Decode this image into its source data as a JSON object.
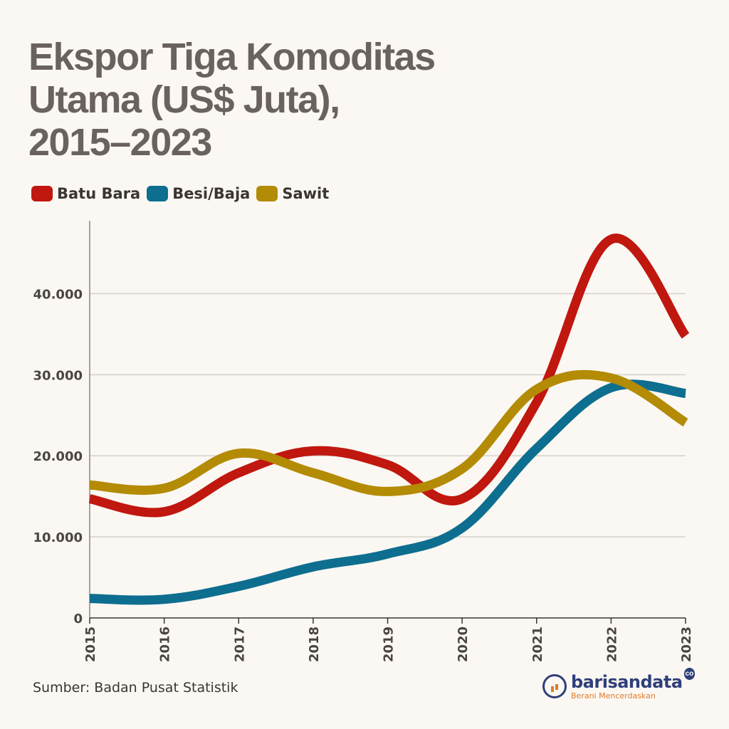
{
  "chart_data": {
    "type": "line",
    "title_lines": [
      "Ekspor Tiga Komoditas",
      "Utama (US$ Juta),",
      "2015–2023"
    ],
    "categories": [
      "2015",
      "2016",
      "2017",
      "2018",
      "2019",
      "2020",
      "2021",
      "2022",
      "2023"
    ],
    "y_ticks": [
      0,
      10000,
      20000,
      30000,
      40000
    ],
    "y_tick_labels": [
      "0",
      "10.000",
      "20.000",
      "30.000",
      "40.000"
    ],
    "ylim": [
      0,
      49000
    ],
    "grid": "horizontal",
    "legend_position": "top-left",
    "series": [
      {
        "name": "Batu Bara",
        "color": "#c0170f",
        "values": [
          14700,
          13100,
          17900,
          20600,
          18900,
          14700,
          26600,
          46700,
          34800
        ]
      },
      {
        "name": "Besi/Baja",
        "color": "#0e6e8f",
        "values": [
          2400,
          2300,
          3900,
          6300,
          7900,
          11100,
          20900,
          28400,
          27700
        ]
      },
      {
        "name": "Sawit",
        "color": "#b38b05",
        "values": [
          16400,
          16000,
          20300,
          17900,
          15600,
          18400,
          28200,
          29600,
          24100
        ]
      }
    ],
    "source": "Sumber: Badan Pusat Statistik"
  },
  "logo": {
    "name": "barisandata",
    "suffix": "co",
    "tagline": "Berani Mencerdaskan"
  }
}
